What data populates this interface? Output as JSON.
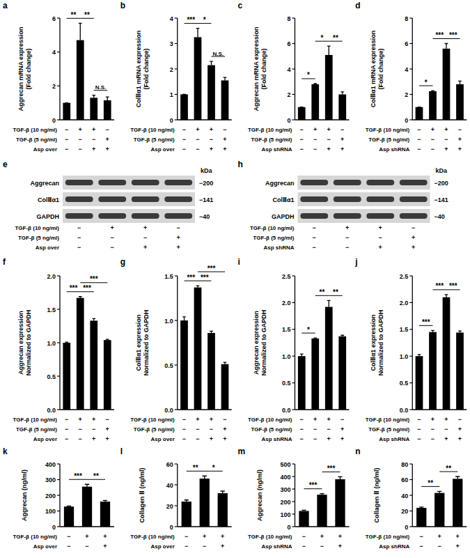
{
  "chart_data": [
    {
      "type": "bar",
      "panel": "a",
      "ylabel": [
        "Aggrecan mRNA expression",
        "(Fold change)"
      ],
      "categories": [
        null,
        null,
        null,
        null
      ],
      "values": [
        1,
        4.7,
        1.3,
        1.15
      ],
      "errors": [
        0,
        1.0,
        0.15,
        0.2
      ],
      "color": "#000000",
      "ylim": [
        0,
        6
      ],
      "yticks": [
        0,
        2,
        4,
        6
      ],
      "grid": false,
      "conditions": [
        {
          "label": "TGF-β (10 ng/ml)",
          "signs": [
            "−",
            "+",
            "+",
            "−"
          ]
        },
        {
          "label": "TGF-β (5 ng/ml)",
          "signs": [
            "−",
            "−",
            "−",
            "+"
          ]
        },
        {
          "label": "Asp over",
          "signs": [
            "−",
            "−",
            "+",
            "+"
          ]
        }
      ],
      "annotations": [
        {
          "from": 0,
          "to": 1,
          "label": "**"
        },
        {
          "from": 1,
          "to": 2,
          "label": "**"
        },
        {
          "from": 2,
          "to": 3,
          "label": "N.S."
        }
      ]
    },
    {
      "type": "bar",
      "panel": "b",
      "ylabel": [
        "ColⅡα1 mRNA expression",
        "(Fold change)"
      ],
      "categories": [
        null,
        null,
        null,
        null
      ],
      "values": [
        1,
        3.25,
        2.15,
        1.55
      ],
      "errors": [
        0,
        0.35,
        0.15,
        0.12
      ],
      "color": "#000000",
      "ylim": [
        0,
        4
      ],
      "yticks": [
        0,
        1,
        2,
        3,
        4
      ],
      "grid": false,
      "conditions": [
        {
          "label": "TGF-β (10 ng/ml)",
          "signs": [
            "−",
            "+",
            "+",
            "−"
          ]
        },
        {
          "label": "TGF-β (5 ng/ml)",
          "signs": [
            "−",
            "−",
            "−",
            "+"
          ]
        },
        {
          "label": "Asp over",
          "signs": [
            "−",
            "−",
            "+",
            "+"
          ]
        }
      ],
      "annotations": [
        {
          "from": 0,
          "to": 1,
          "label": "***"
        },
        {
          "from": 1,
          "to": 2,
          "label": "*"
        },
        {
          "from": 2,
          "to": 3,
          "label": "N.S."
        }
      ]
    },
    {
      "type": "bar",
      "panel": "c",
      "ylabel": [
        "Aggrecan mRNA expression",
        "(Fold change)"
      ],
      "categories": [
        null,
        null,
        null,
        null
      ],
      "values": [
        1,
        2.8,
        5.1,
        2.0
      ],
      "errors": [
        0,
        0.05,
        0.7,
        0.2
      ],
      "color": "#000000",
      "ylim": [
        0,
        8
      ],
      "yticks": [
        0,
        2,
        4,
        6,
        8
      ],
      "grid": false,
      "conditions": [
        {
          "label": "TGF-β (10 ng/ml)",
          "signs": [
            "−",
            "+",
            "+",
            "−"
          ]
        },
        {
          "label": "TGF-β (5 ng/ml)",
          "signs": [
            "−",
            "−",
            "−",
            "+"
          ]
        },
        {
          "label": "Asp shRNA",
          "signs": [
            "−",
            "−",
            "+",
            "+"
          ]
        }
      ],
      "annotations": [
        {
          "from": 0,
          "to": 1,
          "label": "*"
        },
        {
          "from": 1,
          "to": 2,
          "label": "*"
        },
        {
          "from": 2,
          "to": 3,
          "label": "**"
        }
      ]
    },
    {
      "type": "bar",
      "panel": "d",
      "ylabel": [
        "ColⅡα1 mRNA expression",
        "(Fold change)"
      ],
      "categories": [
        null,
        null,
        null,
        null
      ],
      "values": [
        1,
        2.25,
        5.6,
        2.8
      ],
      "errors": [
        0,
        0.05,
        0.4,
        0.25
      ],
      "color": "#000000",
      "ylim": [
        0,
        8
      ],
      "yticks": [
        0,
        2,
        4,
        6,
        8
      ],
      "grid": false,
      "conditions": [
        {
          "label": "TGF-β (10 ng/ml)",
          "signs": [
            "−",
            "+",
            "+",
            "−"
          ]
        },
        {
          "label": "TGF-β (5 ng/ml)",
          "signs": [
            "−",
            "−",
            "−",
            "+"
          ]
        },
        {
          "label": "Asp shRNA",
          "signs": [
            "−",
            "−",
            "+",
            "+"
          ]
        }
      ],
      "annotations": [
        {
          "from": 0,
          "to": 1,
          "label": "*"
        },
        {
          "from": 1,
          "to": 2,
          "label": "***"
        },
        {
          "from": 2,
          "to": 3,
          "label": "***"
        }
      ]
    },
    {
      "type": "bar",
      "panel": "f",
      "ylabel": [
        "Aggrecan expression",
        "Normalized to GAPDH"
      ],
      "categories": [
        null,
        null,
        null,
        null
      ],
      "values": [
        1.0,
        1.67,
        1.33,
        1.04
      ],
      "errors": [
        0.01,
        0.02,
        0.03,
        0.01
      ],
      "color": "#000000",
      "ylim": [
        0,
        2
      ],
      "yticks": [
        {
          "value": 0,
          "label": "0.0"
        },
        {
          "value": 0.5,
          "label": "0.5"
        },
        {
          "value": 1,
          "label": "1.0"
        },
        {
          "value": 1.5,
          "label": "1.5"
        },
        {
          "value": 2,
          "label": "2.0"
        }
      ],
      "grid": false,
      "conditions": [
        {
          "label": "TGF-β (10 ng/ml)",
          "signs": [
            "−",
            "+",
            "+",
            "−"
          ]
        },
        {
          "label": "TGF-β (5 ng/ml)",
          "signs": [
            "−",
            "−",
            "−",
            "+"
          ]
        },
        {
          "label": "Asp over",
          "signs": [
            "−",
            "−",
            "+",
            "+"
          ]
        }
      ],
      "annotations": [
        {
          "from": 0,
          "to": 1,
          "label": "***"
        },
        {
          "from": 1,
          "to": 2,
          "label": "***"
        },
        {
          "from": 1,
          "to": 3,
          "label": "***"
        }
      ]
    },
    {
      "type": "bar",
      "panel": "g",
      "ylabel": [
        "ColⅡα1 expression",
        "Normalized to GAPDH"
      ],
      "categories": [
        null,
        null,
        null,
        null
      ],
      "values": [
        1.0,
        1.37,
        0.86,
        0.51
      ],
      "errors": [
        0.04,
        0.02,
        0.02,
        0.02
      ],
      "color": "#000000",
      "ylim": [
        0,
        1.5
      ],
      "yticks": [
        {
          "value": 0,
          "label": "0.0"
        },
        {
          "value": 0.5,
          "label": "0.5"
        },
        {
          "value": 1,
          "label": "1.0"
        },
        {
          "value": 1.5,
          "label": "1.5"
        }
      ],
      "grid": false,
      "conditions": [
        {
          "label": "TGF-β (10 ng/ml)",
          "signs": [
            "−",
            "+",
            "+",
            "−"
          ]
        },
        {
          "label": "TGF-β (5 ng/ml)",
          "signs": [
            "−",
            "−",
            "−",
            "+"
          ]
        },
        {
          "label": "Asp over",
          "signs": [
            "−",
            "−",
            "+",
            "+"
          ]
        }
      ],
      "annotations": [
        {
          "from": 0,
          "to": 1,
          "label": "***"
        },
        {
          "from": 1,
          "to": 2,
          "label": "***"
        },
        {
          "from": 1,
          "to": 3,
          "label": "***"
        }
      ]
    },
    {
      "type": "bar",
      "panel": "i",
      "ylabel": [
        "Aggrecan expression",
        "Normalized to GAPDH"
      ],
      "categories": [
        null,
        null,
        null,
        null
      ],
      "values": [
        1.0,
        1.33,
        1.92,
        1.37
      ],
      "errors": [
        0.04,
        0.01,
        0.12,
        0.02
      ],
      "color": "#000000",
      "ylim": [
        0,
        2.5
      ],
      "yticks": [
        {
          "value": 0,
          "label": "0.0"
        },
        {
          "value": 0.5,
          "label": "0.5"
        },
        {
          "value": 1,
          "label": "1.0"
        },
        {
          "value": 1.5,
          "label": "1.5"
        },
        {
          "value": 2,
          "label": "2.0"
        },
        {
          "value": 2.5,
          "label": "2.5"
        }
      ],
      "grid": false,
      "conditions": [
        {
          "label": "TGF-β (10 ng/ml)",
          "signs": [
            "−",
            "+",
            "+",
            "−"
          ]
        },
        {
          "label": "TGF-β (5 ng/ml)",
          "signs": [
            "−",
            "−",
            "−",
            "+"
          ]
        },
        {
          "label": "Asp shRNA",
          "signs": [
            "−",
            "−",
            "+",
            "+"
          ]
        }
      ],
      "annotations": [
        {
          "from": 0,
          "to": 1,
          "label": "*"
        },
        {
          "from": 1,
          "to": 2,
          "label": "**"
        },
        {
          "from": 2,
          "to": 3,
          "label": "**"
        }
      ]
    },
    {
      "type": "bar",
      "panel": "j",
      "ylabel": [
        "ColⅡα1 expression",
        "Normalized to GAPDH"
      ],
      "categories": [
        null,
        null,
        null,
        null
      ],
      "values": [
        1.0,
        1.45,
        2.1,
        1.44
      ],
      "errors": [
        0.03,
        0.03,
        0.05,
        0.03
      ],
      "color": "#000000",
      "ylim": [
        0,
        2.5
      ],
      "yticks": [
        {
          "value": 0,
          "label": "0.0"
        },
        {
          "value": 0.5,
          "label": "0.5"
        },
        {
          "value": 1,
          "label": "1.0"
        },
        {
          "value": 1.5,
          "label": "1.5"
        },
        {
          "value": 2,
          "label": "2.0"
        },
        {
          "value": 2.5,
          "label": "2.5"
        }
      ],
      "grid": false,
      "conditions": [
        {
          "label": "TGF-β (10 ng/ml)",
          "signs": [
            "−",
            "+",
            "+",
            "−"
          ]
        },
        {
          "label": "TGF-β (5 ng/ml)",
          "signs": [
            "−",
            "−",
            "−",
            "+"
          ]
        },
        {
          "label": "Asp shRNA",
          "signs": [
            "−",
            "−",
            "+",
            "+"
          ]
        }
      ],
      "annotations": [
        {
          "from": 0,
          "to": 1,
          "label": "***"
        },
        {
          "from": 1,
          "to": 2,
          "label": "***"
        },
        {
          "from": 2,
          "to": 3,
          "label": "***"
        }
      ]
    },
    {
      "type": "bar",
      "panel": "k",
      "ylabel": [
        "Aggrecan (ng/ml)"
      ],
      "categories": [
        null,
        null,
        null
      ],
      "values": [
        128,
        255,
        160
      ],
      "errors": [
        4,
        15,
        7
      ],
      "color": "#000000",
      "ylim": [
        0,
        400
      ],
      "yticks": [
        0,
        100,
        200,
        300,
        400
      ],
      "grid": false,
      "conditions": [
        {
          "label": "TGF-β (10 ng/ml)",
          "signs": [
            "−",
            "+",
            "+"
          ]
        },
        {
          "label": "Asp over",
          "signs": [
            "−",
            "−",
            "+"
          ]
        }
      ],
      "annotations": [
        {
          "from": 0,
          "to": 1,
          "label": "***"
        },
        {
          "from": 1,
          "to": 2,
          "label": "**"
        }
      ]
    },
    {
      "type": "bar",
      "panel": "l",
      "ylabel": [
        "Collagen Ⅱ (ng/ml)"
      ],
      "categories": [
        null,
        null,
        null
      ],
      "values": [
        24,
        46,
        32
      ],
      "errors": [
        1.5,
        2.5,
        2
      ],
      "color": "#000000",
      "ylim": [
        0,
        60
      ],
      "yticks": [
        0,
        20,
        40,
        60
      ],
      "grid": false,
      "conditions": [
        {
          "label": "TGF-β (10 ng/ml)",
          "signs": [
            "−",
            "+",
            "+"
          ]
        },
        {
          "label": "Asp over",
          "signs": [
            "−",
            "−",
            "+"
          ]
        }
      ],
      "annotations": [
        {
          "from": 0,
          "to": 1,
          "label": "**"
        },
        {
          "from": 1,
          "to": 2,
          "label": "*"
        }
      ]
    },
    {
      "type": "bar",
      "panel": "m",
      "ylabel": [
        "Aggrecan (ng/ml)"
      ],
      "categories": [
        null,
        null,
        null
      ],
      "values": [
        125,
        255,
        378
      ],
      "errors": [
        6,
        8,
        20
      ],
      "color": "#000000",
      "ylim": [
        0,
        500
      ],
      "yticks": [
        0,
        100,
        200,
        300,
        400,
        500
      ],
      "grid": false,
      "conditions": [
        {
          "label": "TGF-β (10 ng/ml)",
          "signs": [
            "−",
            "+",
            "+"
          ]
        },
        {
          "label": "Asp shRNA",
          "signs": [
            "−",
            "−",
            "+"
          ]
        }
      ],
      "annotations": [
        {
          "from": 0,
          "to": 1,
          "label": "***"
        },
        {
          "from": 1,
          "to": 2,
          "label": "***"
        }
      ]
    },
    {
      "type": "bar",
      "panel": "n",
      "ylabel": [
        "Collagen Ⅱ (ng/ml)"
      ],
      "categories": [
        null,
        null,
        null
      ],
      "values": [
        24,
        43,
        61
      ],
      "errors": [
        1,
        2,
        3
      ],
      "color": "#000000",
      "ylim": [
        0,
        80
      ],
      "yticks": [
        0,
        20,
        40,
        60,
        80
      ],
      "grid": false,
      "conditions": [
        {
          "label": "TGF-β (10 ng/ml)",
          "signs": [
            "−",
            "+",
            "+"
          ]
        },
        {
          "label": "Asp shRNA",
          "signs": [
            "−",
            "−",
            "+"
          ]
        }
      ],
      "annotations": [
        {
          "from": 0,
          "to": 1,
          "label": "**"
        },
        {
          "from": 1,
          "to": 2,
          "label": "**"
        }
      ]
    }
  ],
  "blots": [
    {
      "panel": "e",
      "unit": "kDa",
      "rows": [
        {
          "name": "Aggrecan",
          "mw": "−200"
        },
        {
          "name": "ColⅡα1",
          "mw": "−141"
        },
        {
          "name": "GAPDH",
          "mw": "−40"
        }
      ],
      "conditions": [
        {
          "label": "TGF-β (10 ng/ml)",
          "signs": [
            "−",
            "+",
            "+",
            "−"
          ]
        },
        {
          "label": "TGF-β (5 ng/ml)",
          "signs": [
            "−",
            "−",
            "−",
            "+"
          ]
        },
        {
          "label": "Asp over",
          "signs": [
            "−",
            "−",
            "+",
            "+"
          ]
        }
      ]
    },
    {
      "panel": "h",
      "unit": "kDa",
      "rows": [
        {
          "name": "Aggrecan",
          "mw": "−200"
        },
        {
          "name": "ColⅡα1",
          "mw": "−141"
        },
        {
          "name": "GAPDH",
          "mw": "−40"
        }
      ],
      "conditions": [
        {
          "label": "TGF-β (10 ng/ml)",
          "signs": [
            "−",
            "+",
            "+",
            "−"
          ]
        },
        {
          "label": "TGF-β (5 ng/ml)",
          "signs": [
            "−",
            "−",
            "−",
            "+"
          ]
        },
        {
          "label": "Asp shRNA",
          "signs": [
            "−",
            "−",
            "+",
            "+"
          ]
        }
      ]
    }
  ]
}
